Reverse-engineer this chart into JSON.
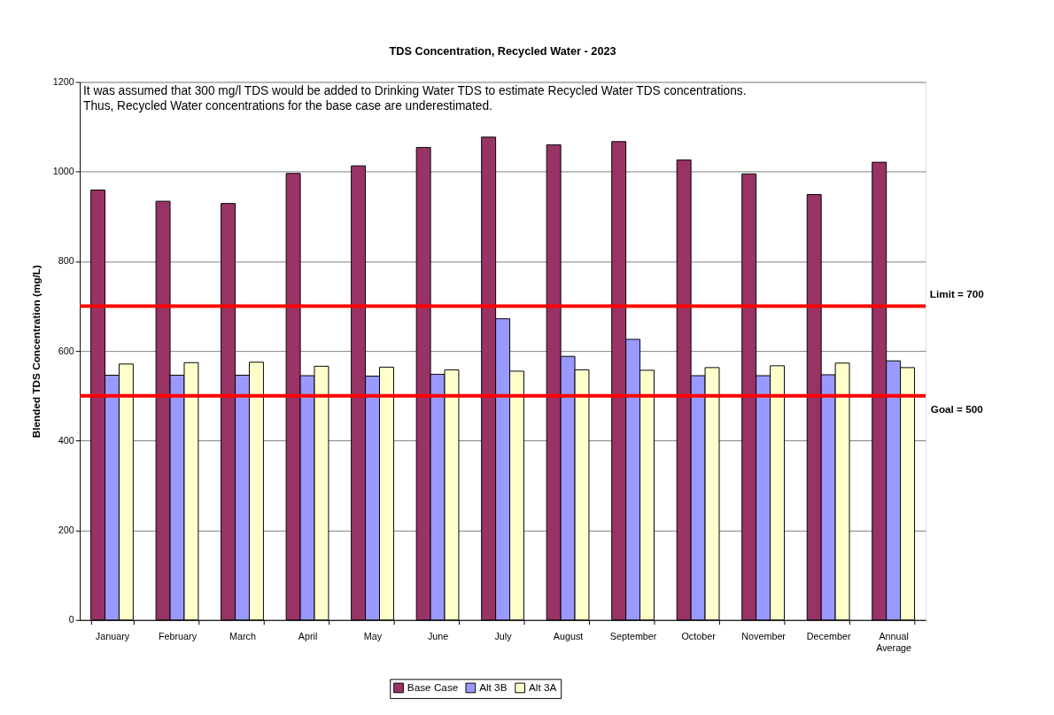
{
  "chart_data": {
    "type": "bar",
    "title": "TDS Concentration, Recycled Water - 2023",
    "ylabel": "Blended TDS Concentration (mg/L)",
    "categories": [
      "January",
      "February",
      "March",
      "April",
      "May",
      "June",
      "July",
      "August",
      "September",
      "October",
      "November",
      "December",
      "Annual Average"
    ],
    "series": [
      {
        "name": "Base Case",
        "color": "#993366",
        "values": [
          959,
          934,
          929,
          996,
          1013,
          1054,
          1077,
          1060,
          1067,
          1026,
          995,
          949,
          1021
        ]
      },
      {
        "name": "Alt 3B",
        "color": "#9999ff",
        "values": [
          546,
          546,
          546,
          545,
          544,
          548,
          672,
          588,
          626,
          545,
          545,
          547,
          578
        ]
      },
      {
        "name": "Alt 3A",
        "color": "#ffffcc",
        "values": [
          571,
          574,
          575,
          566,
          564,
          558,
          555,
          558,
          557,
          563,
          567,
          573,
          563
        ]
      }
    ],
    "ylim": [
      0,
      1200
    ],
    "yticks": [
      0,
      200,
      400,
      600,
      800,
      1000,
      1200
    ],
    "grid": "y",
    "legend": "bottom",
    "ref_lines": [
      {
        "axis": "y",
        "value": 700,
        "label": "Limit = 700",
        "color": "#ff0000"
      },
      {
        "axis": "y",
        "value": 500,
        "label": "Goal = 500",
        "color": "#ff0000"
      }
    ],
    "annotations": [
      "It was assumed that 300 mg/l TDS would be added to Drinking Water TDS to estimate Recycled Water TDS concentrations.",
      "Thus, Recycled Water concentrations for the base case are underestimated."
    ]
  }
}
